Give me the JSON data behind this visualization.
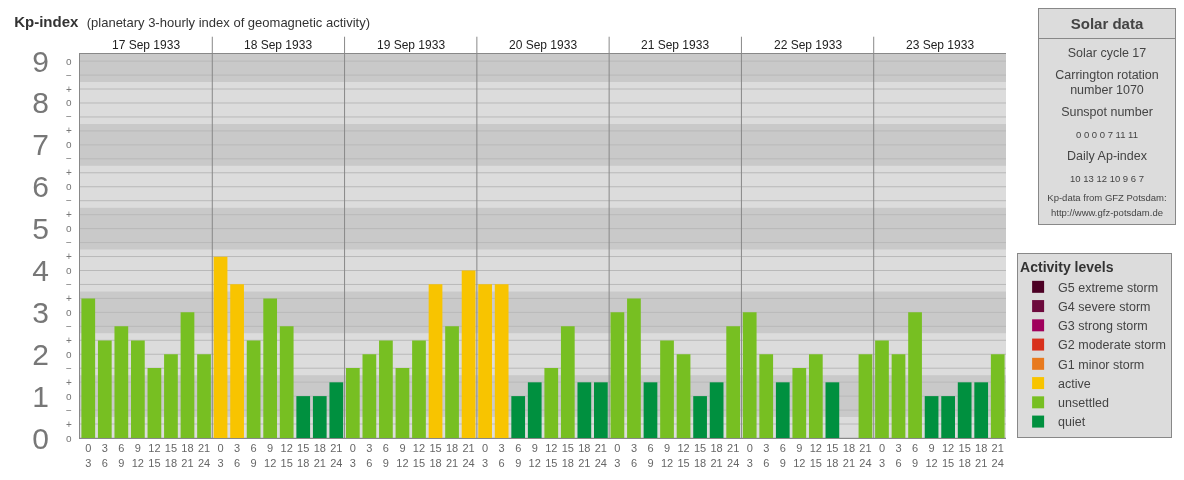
{
  "chart_data": [
    {
      "type": "bar",
      "title": "Kp-index",
      "subtitle": "(planetary 3-hourly index of geomagnetic activity)",
      "legend_title": "Activity levels",
      "legend": "right",
      "grid": true,
      "annotations": [
        "17 Sep 1933",
        "18 Sep 1933",
        "19 Sep 1933",
        "20 Sep 1933",
        "21 Sep 1933",
        "22 Sep 1933",
        "23 Sep 1933"
      ],
      "y2_categories": [
        "o",
        "−",
        "+",
        "o",
        "−",
        "+",
        "o",
        "−",
        "+",
        "o",
        "−",
        "+",
        "o",
        "−",
        "+",
        "o",
        "−",
        "+",
        "o",
        "−",
        "+",
        "o",
        "−",
        "+",
        "o",
        "−",
        "+",
        "o"
      ],
      "bands": [
        {
          "axis": "y",
          "from": 0.5,
          "to": 1.5,
          "color": "#c9c9c9"
        },
        {
          "axis": "y",
          "from": 2.5,
          "to": 3.5,
          "color": "#c9c9c9"
        },
        {
          "axis": "y",
          "from": 4.5,
          "to": 5.5,
          "color": "#c9c9c9"
        },
        {
          "axis": "y",
          "from": 6.5,
          "to": 7.5,
          "color": "#c9c9c9"
        },
        {
          "axis": "y",
          "from": 8.5,
          "to": 9.17,
          "color": "#c9c9c9"
        }
      ],
      "categories": [
        "0\n3",
        "3\n6",
        "6\n9",
        "9\n12",
        "12\n15",
        "15\n18",
        "18\n21",
        "21\n24",
        "0\n3",
        "3\n6",
        "6\n9",
        "9\n12",
        "12\n15",
        "15\n18",
        "18\n21",
        "21\n24",
        "0\n3",
        "3\n6",
        "6\n9",
        "9\n12",
        "12\n15",
        "15\n18",
        "18\n21",
        "21\n24",
        "0\n3",
        "3\n6",
        "6\n9",
        "9\n12",
        "12\n15",
        "15\n18",
        "18\n21",
        "21\n24",
        "0\n3",
        "3\n6",
        "6\n9",
        "9\n12",
        "12\n15",
        "15\n18",
        "18\n21",
        "21\n24",
        "0\n3",
        "3\n6",
        "6\n9",
        "9\n12",
        "12\n15",
        "15\n18",
        "18\n21",
        "21\n24",
        "0\n3",
        "3\n6",
        "6\n9",
        "9\n12",
        "12\n15",
        "15\n18",
        "18\n21",
        "21\n24"
      ],
      "ylim": [
        0,
        9.17
      ],
      "yticks": [
        0,
        1,
        2,
        3,
        4,
        5,
        6,
        7,
        8,
        9
      ],
      "series": [
        {
          "name": "G5 extreme storm",
          "color": "#4c0024",
          "values": [
            null,
            null,
            null,
            null,
            null,
            null,
            null,
            null,
            null,
            null,
            null,
            null,
            null,
            null,
            null,
            null,
            null,
            null,
            null,
            null,
            null,
            null,
            null,
            null,
            null,
            null,
            null,
            null,
            null,
            null,
            null,
            null,
            null,
            null,
            null,
            null,
            null,
            null,
            null,
            null,
            null,
            null,
            null,
            null,
            null,
            null,
            null,
            null,
            null,
            null,
            null,
            null,
            null,
            null,
            null,
            null
          ]
        },
        {
          "name": "G4 severe storm",
          "color": "#6c0a3c",
          "values": [
            null,
            null,
            null,
            null,
            null,
            null,
            null,
            null,
            null,
            null,
            null,
            null,
            null,
            null,
            null,
            null,
            null,
            null,
            null,
            null,
            null,
            null,
            null,
            null,
            null,
            null,
            null,
            null,
            null,
            null,
            null,
            null,
            null,
            null,
            null,
            null,
            null,
            null,
            null,
            null,
            null,
            null,
            null,
            null,
            null,
            null,
            null,
            null,
            null,
            null,
            null,
            null,
            null,
            null,
            null,
            null
          ]
        },
        {
          "name": "G3 strong storm",
          "color": "#a0005c",
          "values": [
            null,
            null,
            null,
            null,
            null,
            null,
            null,
            null,
            null,
            null,
            null,
            null,
            null,
            null,
            null,
            null,
            null,
            null,
            null,
            null,
            null,
            null,
            null,
            null,
            null,
            null,
            null,
            null,
            null,
            null,
            null,
            null,
            null,
            null,
            null,
            null,
            null,
            null,
            null,
            null,
            null,
            null,
            null,
            null,
            null,
            null,
            null,
            null,
            null,
            null,
            null,
            null,
            null,
            null,
            null,
            null
          ]
        },
        {
          "name": "G2 moderate storm",
          "color": "#d8301c",
          "values": [
            null,
            null,
            null,
            null,
            null,
            null,
            null,
            null,
            null,
            null,
            null,
            null,
            null,
            null,
            null,
            null,
            null,
            null,
            null,
            null,
            null,
            null,
            null,
            null,
            null,
            null,
            null,
            null,
            null,
            null,
            null,
            null,
            null,
            null,
            null,
            null,
            null,
            null,
            null,
            null,
            null,
            null,
            null,
            null,
            null,
            null,
            null,
            null,
            null,
            null,
            null,
            null,
            null,
            null,
            null,
            null
          ]
        },
        {
          "name": "G1 minor storm",
          "color": "#e87a1e",
          "values": [
            null,
            null,
            null,
            null,
            null,
            null,
            null,
            null,
            null,
            null,
            null,
            null,
            null,
            null,
            null,
            null,
            null,
            null,
            null,
            null,
            null,
            null,
            null,
            null,
            null,
            null,
            null,
            null,
            null,
            null,
            null,
            null,
            null,
            null,
            null,
            null,
            null,
            null,
            null,
            null,
            null,
            null,
            null,
            null,
            null,
            null,
            null,
            null,
            null,
            null,
            null,
            null,
            null,
            null,
            null,
            null
          ]
        },
        {
          "name": "active",
          "color": "#f8c400",
          "values": [
            null,
            null,
            null,
            null,
            null,
            null,
            null,
            null,
            4.33,
            3.67,
            null,
            null,
            null,
            null,
            null,
            null,
            null,
            null,
            null,
            null,
            null,
            3.67,
            null,
            4,
            3.67,
            3.67,
            null,
            null,
            null,
            null,
            null,
            null,
            null,
            null,
            null,
            null,
            null,
            null,
            null,
            null,
            null,
            null,
            null,
            null,
            null,
            null,
            null,
            null,
            null,
            null,
            null,
            null,
            null,
            null,
            null,
            null
          ]
        },
        {
          "name": "unsettled",
          "color": "#77bf22",
          "values": [
            3.33,
            2.33,
            2.67,
            2.33,
            1.67,
            2,
            3,
            2,
            null,
            null,
            2.33,
            3.33,
            2.67,
            null,
            null,
            null,
            1.67,
            2,
            2.33,
            1.67,
            2.33,
            null,
            2.67,
            null,
            null,
            null,
            null,
            null,
            1.67,
            2.67,
            null,
            null,
            3,
            3.33,
            null,
            2.33,
            2,
            null,
            null,
            2.67,
            3,
            2,
            null,
            1.67,
            2,
            null,
            null,
            2,
            2.33,
            2,
            3,
            null,
            null,
            null,
            null,
            2
          ]
        },
        {
          "name": "quiet",
          "color": "#00903f",
          "values": [
            null,
            null,
            null,
            null,
            null,
            null,
            null,
            null,
            null,
            null,
            null,
            null,
            null,
            1,
            1,
            1.33,
            null,
            null,
            null,
            null,
            null,
            null,
            null,
            null,
            null,
            null,
            1,
            1.33,
            null,
            null,
            1.33,
            1.33,
            null,
            null,
            1.33,
            null,
            null,
            1,
            1.33,
            null,
            null,
            null,
            1.33,
            null,
            null,
            1.33,
            0,
            null,
            null,
            null,
            null,
            1,
            1,
            1.33,
            1.33,
            null
          ]
        }
      ]
    },
    {
      "type": "other",
      "title": "Solar data",
      "annotations": [
        "Solar cycle 17",
        "Carrington rotation\nnumber 1070",
        "Sunspot number",
        "0   0   0   0   7   11   11",
        "Daily Ap-index",
        "10   13   12   10   9   6   7",
        "Kp-data from GFZ Potsdam:\nhttp://www.gfz-potsdam.de"
      ]
    }
  ]
}
